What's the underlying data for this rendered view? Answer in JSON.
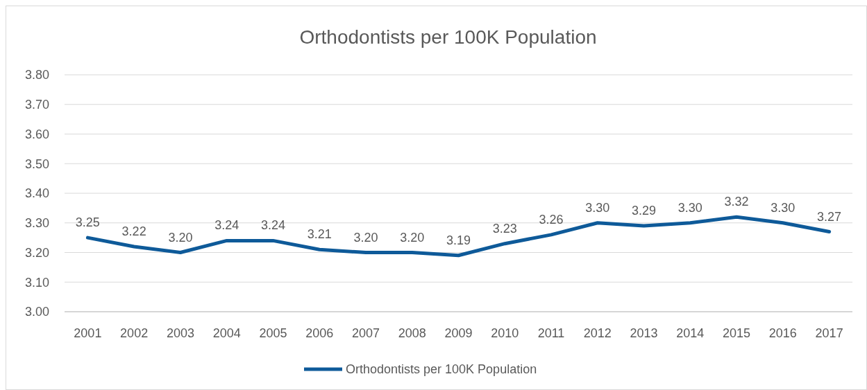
{
  "chart_data": {
    "type": "line",
    "title": "Orthodontists per 100K Population",
    "categories": [
      "2001",
      "2002",
      "2003",
      "2004",
      "2005",
      "2006",
      "2007",
      "2008",
      "2009",
      "2010",
      "2011",
      "2012",
      "2013",
      "2014",
      "2015",
      "2016",
      "2017"
    ],
    "series": [
      {
        "name": "Orthodontists per 100K Population",
        "color": "#0e5a99",
        "values": [
          3.25,
          3.22,
          3.2,
          3.24,
          3.24,
          3.21,
          3.2,
          3.2,
          3.19,
          3.23,
          3.26,
          3.3,
          3.29,
          3.3,
          3.32,
          3.3,
          3.27
        ],
        "value_labels": [
          "3.25",
          "3.22",
          "3.20",
          "3.24",
          "3.24",
          "3.21",
          "3.20",
          "3.20",
          "3.19",
          "3.23",
          "3.26",
          "3.30",
          "3.29",
          "3.30",
          "3.32",
          "3.30",
          "3.27"
        ]
      }
    ],
    "ylim": [
      3.0,
      3.8
    ],
    "yticks": [
      {
        "value": 3.0,
        "label": "3.00"
      },
      {
        "value": 3.1,
        "label": "3.10"
      },
      {
        "value": 3.2,
        "label": "3.20"
      },
      {
        "value": 3.3,
        "label": "3.30"
      },
      {
        "value": 3.4,
        "label": "3.40"
      },
      {
        "value": 3.5,
        "label": "3.50"
      },
      {
        "value": 3.6,
        "label": "3.60"
      },
      {
        "value": 3.7,
        "label": "3.70"
      },
      {
        "value": 3.8,
        "label": "3.80"
      }
    ],
    "grid": "y",
    "legend": "bottom",
    "marker": "none",
    "line_style": "solid"
  }
}
